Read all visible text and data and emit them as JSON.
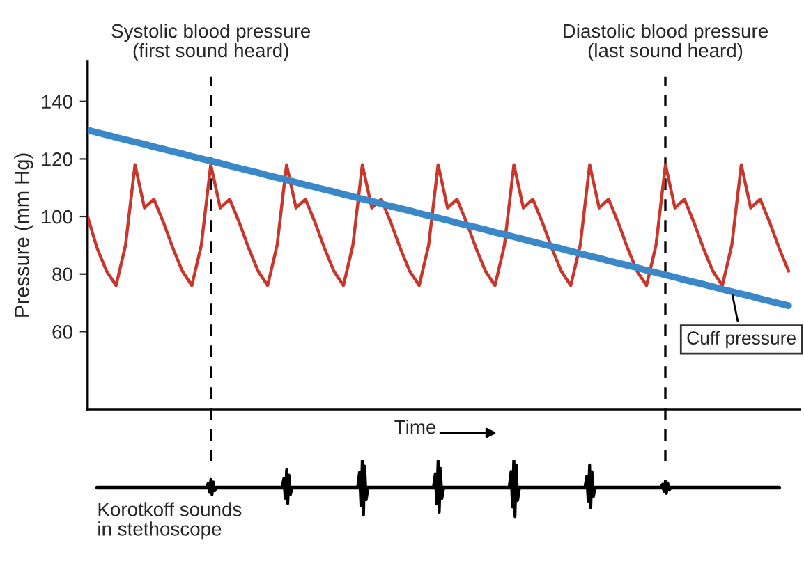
{
  "chart_data": {
    "type": "line",
    "xlabel": "Time",
    "ylabel": "Pressure (mm Hg)",
    "categories": [
      null,
      null,
      null,
      null,
      null,
      null,
      null,
      null,
      null,
      null,
      null,
      null,
      null,
      null,
      null,
      null,
      null,
      null,
      null,
      null,
      null,
      null,
      null,
      null,
      null,
      null,
      null,
      null,
      null,
      null,
      null,
      null,
      null,
      null,
      null,
      null,
      null,
      null,
      null,
      null,
      null,
      null,
      null,
      null,
      null,
      null,
      null,
      null,
      null,
      null,
      null,
      null,
      null,
      null,
      null,
      null,
      null,
      null,
      null,
      null,
      null,
      null,
      null,
      null,
      null,
      null,
      null,
      null,
      null,
      null,
      null,
      null,
      null,
      null,
      null
    ],
    "series": [
      {
        "color": "#c9372c",
        "values": [
          100,
          89,
          81,
          76,
          90,
          118,
          103,
          106,
          98,
          89,
          81,
          76,
          90,
          118,
          103,
          106,
          98,
          89,
          81,
          76,
          90,
          118,
          103,
          106,
          98,
          89,
          81,
          76,
          90,
          118,
          103,
          106,
          98,
          89,
          81,
          76,
          90,
          118,
          103,
          106,
          98,
          89,
          81,
          76,
          90,
          118,
          103,
          106,
          98,
          89,
          81,
          76,
          90,
          118,
          103,
          106,
          98,
          89,
          81,
          76,
          90,
          118,
          103,
          106,
          98,
          89,
          81,
          76,
          90,
          118,
          103,
          106,
          98,
          89,
          81
        ]
      },
      {
        "name": "Cuff pressure",
        "color": "#3b88c9",
        "values": [
          130.0,
          129.2,
          128.4,
          127.5,
          126.7,
          125.9,
          125.1,
          124.2,
          123.4,
          122.6,
          121.8,
          120.9,
          120.1,
          119.3,
          118.5,
          117.6,
          116.8,
          116.0,
          115.2,
          114.3,
          113.5,
          112.7,
          111.9,
          111.0,
          110.2,
          109.4,
          108.6,
          107.7,
          106.9,
          106.1,
          105.3,
          104.4,
          103.6,
          102.8,
          102.0,
          101.1,
          100.3,
          99.5,
          98.7,
          97.8,
          97.0,
          96.2,
          95.4,
          94.5,
          93.7,
          92.9,
          92.1,
          91.2,
          90.4,
          89.6,
          88.8,
          87.9,
          87.1,
          86.3,
          85.5,
          84.6,
          83.8,
          83.0,
          82.2,
          81.3,
          80.5,
          79.7,
          78.9,
          78.0,
          77.2,
          76.4,
          75.6,
          74.7,
          73.9,
          73.1,
          72.3,
          71.4,
          70.6,
          69.8,
          69.0
        ]
      }
    ],
    "ylim": [
      33,
      154
    ],
    "yticks": [
      60,
      80,
      100,
      120,
      140
    ],
    "annotations": [
      "Systolic blood pressure\n(first sound heard)",
      "Diastolic blood pressure\n(last sound heard)",
      "Korotkoff sounds\nin stethoscope"
    ],
    "tick_labels": "y",
    "grid": false,
    "legend": false,
    "line_style": "solid",
    "marker": "none"
  }
}
